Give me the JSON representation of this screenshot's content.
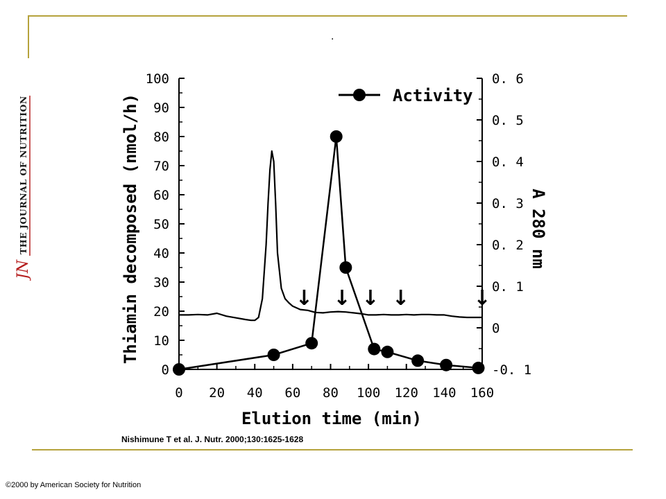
{
  "slide": {
    "title_mark": ".",
    "citation": "Nishimune T et al. J. Nutr. 2000;130:1625-1628",
    "copyright": "©2000 by American Society for Nutrition",
    "logo": {
      "initials": "JN",
      "journal": "THE JOURNAL OF NUTRITION"
    },
    "accent_color": "#b5a23c"
  },
  "chart_data": {
    "type": "line",
    "x": {
      "label": "Elution time (min)",
      "range": [
        0,
        160
      ],
      "ticks": [
        "0",
        "20",
        "40",
        "60",
        "80",
        "100",
        "120",
        "140",
        "160"
      ]
    },
    "y_left": {
      "label": "Thiamin decomposed (nmol/h)",
      "range": [
        0,
        100
      ],
      "ticks": [
        "0",
        "10",
        "20",
        "30",
        "40",
        "50",
        "60",
        "70",
        "80",
        "90",
        "100"
      ]
    },
    "y_right": {
      "label": "A 280 nm",
      "range": [
        -0.1,
        0.6
      ],
      "ticks": [
        "-0. 1",
        "0",
        "0. 1",
        "0. 2",
        "0. 3",
        "0. 4",
        "0. 5",
        "0. 6"
      ]
    },
    "legend": {
      "entries": [
        "Activity"
      ],
      "position": "top-right"
    },
    "series": [
      {
        "name": "Activity",
        "axis": "left",
        "marker": "filled-circle",
        "x": [
          0,
          50,
          70,
          83,
          88,
          103,
          110,
          126,
          141,
          158
        ],
        "y": [
          0,
          5,
          9,
          80,
          35,
          7,
          6,
          3,
          1.5,
          0.5
        ]
      },
      {
        "axis": "right",
        "marker": "none",
        "x": [
          0,
          5,
          10,
          15,
          20,
          25,
          30,
          35,
          38,
          40,
          42,
          44,
          46,
          47,
          48,
          49,
          50,
          51,
          52,
          54,
          56,
          58,
          60,
          64,
          68,
          72,
          76,
          80,
          84,
          88,
          92,
          96,
          100,
          104,
          108,
          112,
          116,
          120,
          124,
          128,
          132,
          136,
          140,
          144,
          148,
          152,
          156,
          160
        ],
        "y": [
          0.031,
          0.031,
          0.032,
          0.031,
          0.035,
          0.028,
          0.024,
          0.02,
          0.018,
          0.018,
          0.025,
          0.07,
          0.2,
          0.3,
          0.38,
          0.425,
          0.4,
          0.3,
          0.18,
          0.095,
          0.07,
          0.06,
          0.052,
          0.044,
          0.042,
          0.037,
          0.036,
          0.038,
          0.039,
          0.038,
          0.036,
          0.034,
          0.031,
          0.031,
          0.032,
          0.031,
          0.031,
          0.032,
          0.031,
          0.032,
          0.032,
          0.031,
          0.031,
          0.028,
          0.026,
          0.025,
          0.025,
          0.025
        ]
      }
    ],
    "annotations": {
      "arrow_glyph": "↓",
      "arrows_at_x": [
        66,
        86,
        101,
        117,
        160
      ]
    }
  }
}
